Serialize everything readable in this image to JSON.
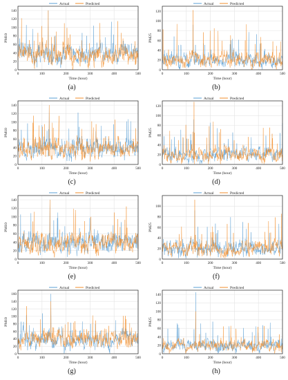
{
  "colors": {
    "actual": "#5a9fd4",
    "predicted": "#f28e2b",
    "grid": "#e3e3e3",
    "axis": "#222222"
  },
  "chart_data": [
    {
      "type": "line",
      "panel_label": "(a)",
      "xlabel": "Time (hour)",
      "ylabel": "PM10",
      "xlim": [
        0,
        500
      ],
      "ylim": [
        0,
        150
      ],
      "xticks": [
        0,
        100,
        200,
        300,
        400,
        500
      ],
      "yticks": [
        0,
        20,
        40,
        60,
        80,
        100,
        120,
        140
      ],
      "grid": true,
      "legend": "top-center",
      "series": [
        {
          "name": "Actual",
          "seed": 11,
          "base": 38,
          "amp": 22,
          "spike_p": 0.05,
          "spike_amp": 75,
          "vmax": 140
        },
        {
          "name": "Predicted",
          "seed": 12,
          "base": 38,
          "amp": 22,
          "spike_p": 0.05,
          "spike_amp": 75,
          "vmax": 140
        }
      ]
    },
    {
      "type": "line",
      "panel_label": "(b)",
      "xlabel": "Time (hour)",
      "ylabel": "PM25",
      "xlim": [
        0,
        500
      ],
      "ylim": [
        0,
        130
      ],
      "xticks": [
        0,
        100,
        200,
        300,
        400,
        500
      ],
      "yticks": [
        0,
        20,
        40,
        60,
        80,
        100,
        120
      ],
      "grid": true,
      "legend": "top-center",
      "series": [
        {
          "name": "Actual",
          "seed": 21,
          "base": 20,
          "amp": 14,
          "spike_p": 0.05,
          "spike_amp": 55,
          "vmax": 92
        },
        {
          "name": "Predicted",
          "seed": 22,
          "base": 20,
          "amp": 14,
          "spike_p": 0.05,
          "spike_amp": 65,
          "vmax": 122
        }
      ]
    },
    {
      "type": "line",
      "panel_label": "(c)",
      "xlabel": "Time (hour)",
      "ylabel": "PM10",
      "xlim": [
        0,
        500
      ],
      "ylim": [
        0,
        150
      ],
      "xticks": [
        0,
        100,
        200,
        300,
        400,
        500
      ],
      "yticks": [
        0,
        20,
        40,
        60,
        80,
        100,
        120,
        140
      ],
      "grid": true,
      "legend": "top-center",
      "series": [
        {
          "name": "Actual",
          "seed": 31,
          "base": 38,
          "amp": 22,
          "spike_p": 0.05,
          "spike_amp": 75,
          "vmax": 140
        },
        {
          "name": "Predicted",
          "seed": 32,
          "base": 38,
          "amp": 22,
          "spike_p": 0.05,
          "spike_amp": 75,
          "vmax": 140
        }
      ]
    },
    {
      "type": "line",
      "panel_label": "(d)",
      "xlabel": "Time (hour)",
      "ylabel": "PM25",
      "xlim": [
        0,
        500
      ],
      "ylim": [
        0,
        130
      ],
      "xticks": [
        0,
        100,
        200,
        300,
        400,
        500
      ],
      "yticks": [
        0,
        20,
        40,
        60,
        80,
        100,
        120
      ],
      "grid": true,
      "legend": "top-center",
      "series": [
        {
          "name": "Actual",
          "seed": 41,
          "base": 20,
          "amp": 14,
          "spike_p": 0.05,
          "spike_amp": 55,
          "vmax": 92
        },
        {
          "name": "Predicted",
          "seed": 42,
          "base": 20,
          "amp": 14,
          "spike_p": 0.05,
          "spike_amp": 65,
          "vmax": 128
        }
      ]
    },
    {
      "type": "line",
      "panel_label": "(e)",
      "xlabel": "Time (hour)",
      "ylabel": "PM10",
      "xlim": [
        0,
        500
      ],
      "ylim": [
        0,
        150
      ],
      "xticks": [
        0,
        100,
        200,
        300,
        400,
        500
      ],
      "yticks": [
        0,
        20,
        40,
        60,
        80,
        100,
        120,
        140
      ],
      "grid": true,
      "legend": "top-center",
      "series": [
        {
          "name": "Actual",
          "seed": 51,
          "base": 38,
          "amp": 22,
          "spike_p": 0.05,
          "spike_amp": 75,
          "vmax": 140
        },
        {
          "name": "Predicted",
          "seed": 52,
          "base": 38,
          "amp": 22,
          "spike_p": 0.05,
          "spike_amp": 75,
          "vmax": 140
        }
      ]
    },
    {
      "type": "line",
      "panel_label": "(f)",
      "xlabel": "Time (hour)",
      "ylabel": "PM25",
      "xlim": [
        0,
        500
      ],
      "ylim": [
        0,
        120
      ],
      "xticks": [
        0,
        100,
        200,
        300,
        400,
        500
      ],
      "yticks": [
        0,
        20,
        40,
        60,
        80,
        100
      ],
      "grid": true,
      "legend": "top-center",
      "series": [
        {
          "name": "Actual",
          "seed": 61,
          "base": 20,
          "amp": 14,
          "spike_p": 0.05,
          "spike_amp": 55,
          "vmax": 92
        },
        {
          "name": "Predicted",
          "seed": 62,
          "base": 20,
          "amp": 14,
          "spike_p": 0.05,
          "spike_amp": 65,
          "vmax": 112
        }
      ]
    },
    {
      "type": "line",
      "panel_label": "(g)",
      "xlabel": "Time (hour)",
      "ylabel": "PM10",
      "xlim": [
        0,
        500
      ],
      "ylim": [
        0,
        170
      ],
      "xticks": [
        0,
        100,
        200,
        300,
        400,
        500
      ],
      "yticks": [
        0,
        20,
        40,
        60,
        80,
        100,
        120,
        140,
        160
      ],
      "grid": true,
      "legend": "top-center",
      "series": [
        {
          "name": "Actual",
          "seed": 71,
          "base": 38,
          "amp": 22,
          "spike_p": 0.05,
          "spike_amp": 60,
          "vmax": 160
        },
        {
          "name": "Predicted",
          "seed": 72,
          "base": 38,
          "amp": 22,
          "spike_p": 0.05,
          "spike_amp": 60,
          "vmax": 140
        }
      ]
    },
    {
      "type": "line",
      "panel_label": "(h)",
      "xlabel": "Time (hour)",
      "ylabel": "PM25",
      "xlim": [
        0,
        500
      ],
      "ylim": [
        0,
        150
      ],
      "xticks": [
        0,
        100,
        200,
        300,
        400,
        500
      ],
      "yticks": [
        0,
        20,
        40,
        60,
        80,
        100,
        120,
        140
      ],
      "grid": true,
      "legend": "top-center",
      "series": [
        {
          "name": "Actual",
          "seed": 81,
          "base": 20,
          "amp": 14,
          "spike_p": 0.04,
          "spike_amp": 55,
          "vmax": 145
        },
        {
          "name": "Predicted",
          "seed": 82,
          "base": 20,
          "amp": 14,
          "spike_p": 0.04,
          "spike_amp": 55,
          "vmax": 100
        }
      ]
    }
  ]
}
